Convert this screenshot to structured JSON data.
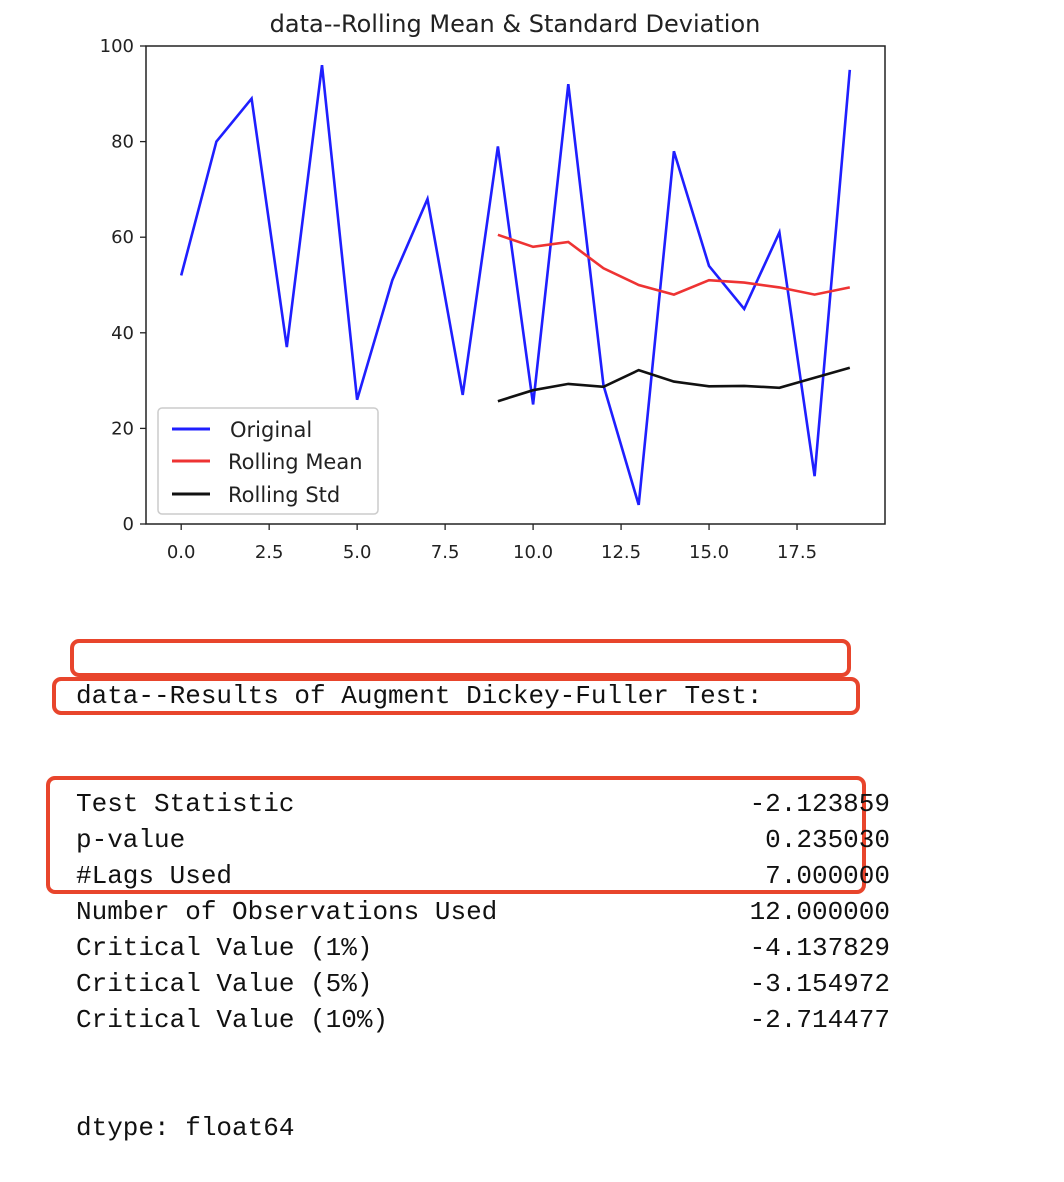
{
  "colors": {
    "original": "#1f1fff",
    "rolling_mean": "#ee3333",
    "rolling_std": "#111111",
    "highlight": "#e8452c"
  },
  "chart_data": {
    "type": "line",
    "title": "data--Rolling Mean & Standard Deviation",
    "xlabel": "",
    "ylabel": "",
    "xlim": [
      -1,
      20
    ],
    "ylim": [
      0,
      100
    ],
    "xticks": [
      0.0,
      2.5,
      5.0,
      7.5,
      10.0,
      12.5,
      15.0,
      17.5
    ],
    "xtick_labels": [
      "0.0",
      "2.5",
      "5.0",
      "7.5",
      "10.0",
      "12.5",
      "15.0",
      "17.5"
    ],
    "yticks": [
      0,
      20,
      40,
      60,
      80,
      100
    ],
    "ytick_labels": [
      "0",
      "20",
      "40",
      "60",
      "80",
      "100"
    ],
    "grid": false,
    "legend_position": "lower-left",
    "series": [
      {
        "name": "Original",
        "color": "#1f1fff",
        "x": [
          0,
          1,
          2,
          3,
          4,
          5,
          6,
          7,
          8,
          9,
          10,
          11,
          12,
          13,
          14,
          15,
          16,
          17,
          18,
          19
        ],
        "y": [
          52,
          80,
          89,
          37,
          96,
          26,
          51,
          68,
          27,
          79,
          25,
          92,
          29,
          4,
          78,
          54,
          45,
          61,
          10,
          95
        ]
      },
      {
        "name": "Rolling Mean",
        "color": "#ee3333",
        "x": [
          9,
          10,
          11,
          12,
          13,
          14,
          15,
          16,
          17,
          18,
          19
        ],
        "y": [
          60.5,
          58,
          59,
          53.5,
          50,
          48,
          51,
          50.5,
          49.5,
          48,
          49.5
        ]
      },
      {
        "name": "Rolling Std",
        "color": "#111111",
        "x": [
          9,
          10,
          11,
          12,
          13,
          14,
          15,
          16,
          17,
          18,
          19
        ],
        "y": [
          25.7,
          28,
          29.3,
          28.7,
          32.2,
          29.8,
          28.8,
          28.9,
          28.5,
          30.6,
          32.7
        ]
      }
    ]
  },
  "results": {
    "header": "data--Results of Augment Dickey-Fuller Test:",
    "rows": [
      {
        "label": "Test Statistic",
        "value": "-2.123859"
      },
      {
        "label": "p-value",
        "value": "0.235030"
      },
      {
        "label": "#Lags Used",
        "value": "7.000000"
      },
      {
        "label": "Number of Observations Used",
        "value": "12.000000"
      },
      {
        "label": "Critical Value (1%)",
        "value": "-4.137829"
      },
      {
        "label": "Critical Value (5%)",
        "value": "-3.154972"
      },
      {
        "label": "Critical Value (10%)",
        "value": "-2.714477"
      }
    ],
    "footer": "dtype: float64"
  }
}
